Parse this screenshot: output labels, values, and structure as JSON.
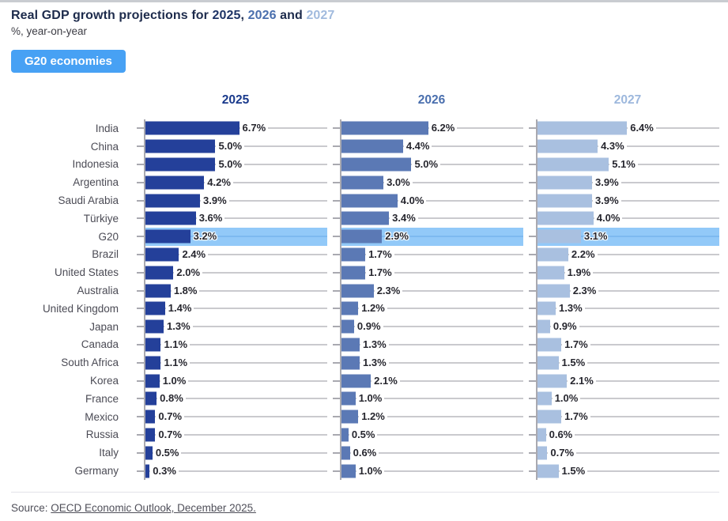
{
  "header": {
    "title_prefix": "Real GDP growth projections for ",
    "sep_comma": ", ",
    "sep_and": " and ",
    "subtitle": "%, year-on-year",
    "button_label": "G20 economies",
    "button_color": "#47a1f4",
    "title_color": "#1d2b4c",
    "years": [
      {
        "label": "2025",
        "title_color": "#1e3466",
        "header_color": "#1a3a8c"
      },
      {
        "label": "2026",
        "title_color": "#4a6fae",
        "header_color": "#4a6fae"
      },
      {
        "label": "2027",
        "title_color": "#a2bbde",
        "header_color": "#9db8dd"
      }
    ]
  },
  "chart_data": {
    "type": "bar",
    "orientation": "horizontal",
    "title": "Real GDP growth projections for 2025, 2026 and 2027",
    "unit": "%, year-on-year",
    "categories": [
      "India",
      "China",
      "Indonesia",
      "Argentina",
      "Saudi Arabia",
      "Türkiye",
      "G20",
      "Brazil",
      "United States",
      "Australia",
      "United Kingdom",
      "Japan",
      "Canada",
      "South Africa",
      "Korea",
      "France",
      "Mexico",
      "Russia",
      "Italy",
      "Germany"
    ],
    "highlight_category": "G20",
    "highlight_row_color": "#92c9f8",
    "value_suffix": "%",
    "xlim": [
      0,
      13
    ],
    "grid_on": true,
    "grid_color": "#cacace",
    "axis_color": "#a9a9b0",
    "series": [
      {
        "name": "2025",
        "color": "#24409a",
        "values": [
          6.7,
          5.0,
          5.0,
          4.2,
          3.9,
          3.6,
          3.2,
          2.4,
          2.0,
          1.8,
          1.4,
          1.3,
          1.1,
          1.1,
          1.0,
          0.8,
          0.7,
          0.7,
          0.5,
          0.3
        ]
      },
      {
        "name": "2026",
        "color": "#5b79b5",
        "values": [
          6.2,
          4.4,
          5.0,
          3.0,
          4.0,
          3.4,
          2.9,
          1.7,
          1.7,
          2.3,
          1.2,
          0.9,
          1.3,
          1.3,
          2.1,
          1.0,
          1.2,
          0.5,
          0.6,
          1.0
        ]
      },
      {
        "name": "2027",
        "color": "#a9c0e0",
        "values": [
          6.4,
          4.3,
          5.1,
          3.9,
          3.9,
          4.0,
          3.1,
          2.2,
          1.9,
          2.3,
          1.3,
          0.9,
          1.7,
          1.5,
          2.1,
          1.0,
          1.7,
          0.6,
          0.7,
          1.5
        ]
      }
    ]
  },
  "footer": {
    "prefix": "Source: ",
    "link_text": "OECD Economic Outlook, December 2025."
  }
}
